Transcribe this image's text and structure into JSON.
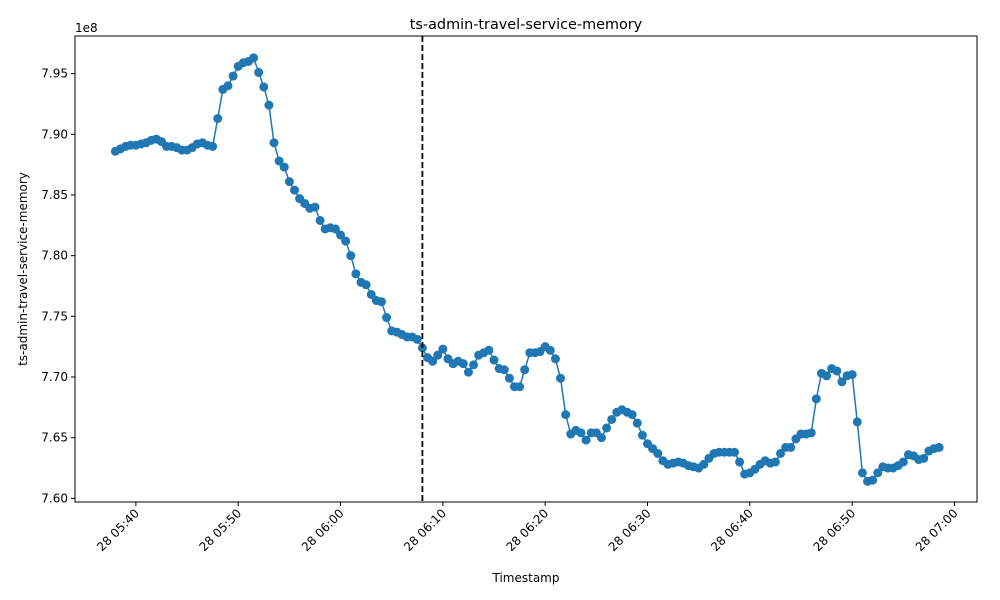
{
  "chart_data": {
    "type": "line",
    "title": "ts-admin-travel-service-memory",
    "x_label": "Timestamp",
    "y_label": "ts-admin-travel-service-memory",
    "y_offset_label": "1e8",
    "x": [
      "28 05:38:00",
      "28 05:38:30",
      "28 05:39:00",
      "28 05:39:30",
      "28 05:40:00",
      "28 05:40:30",
      "28 05:41:00",
      "28 05:41:30",
      "28 05:42:00",
      "28 05:42:30",
      "28 05:43:00",
      "28 05:43:30",
      "28 05:44:00",
      "28 05:44:30",
      "28 05:45:00",
      "28 05:45:30",
      "28 05:46:00",
      "28 05:46:30",
      "28 05:47:00",
      "28 05:47:30",
      "28 05:48:00",
      "28 05:48:30",
      "28 05:49:00",
      "28 05:49:30",
      "28 05:50:00",
      "28 05:50:30",
      "28 05:51:00",
      "28 05:51:30",
      "28 05:52:00",
      "28 05:52:30",
      "28 05:53:00",
      "28 05:53:30",
      "28 05:54:00",
      "28 05:54:30",
      "28 05:55:00",
      "28 05:55:30",
      "28 05:56:00",
      "28 05:56:30",
      "28 05:57:00",
      "28 05:57:30",
      "28 05:58:00",
      "28 05:58:30",
      "28 05:59:00",
      "28 05:59:30",
      "28 06:00:00",
      "28 06:00:30",
      "28 06:01:00",
      "28 06:01:30",
      "28 06:02:00",
      "28 06:02:30",
      "28 06:03:00",
      "28 06:03:30",
      "28 06:04:00",
      "28 06:04:30",
      "28 06:05:00",
      "28 06:05:30",
      "28 06:06:00",
      "28 06:06:30",
      "28 06:07:00",
      "28 06:07:30",
      "28 06:08:00",
      "28 06:08:30",
      "28 06:09:00",
      "28 06:09:30",
      "28 06:10:00",
      "28 06:10:30",
      "28 06:11:00",
      "28 06:11:30",
      "28 06:12:00",
      "28 06:12:30",
      "28 06:13:00",
      "28 06:13:30",
      "28 06:14:00",
      "28 06:14:30",
      "28 06:15:00",
      "28 06:15:30",
      "28 06:16:00",
      "28 06:16:30",
      "28 06:17:00",
      "28 06:17:30",
      "28 06:18:00",
      "28 06:18:30",
      "28 06:19:00",
      "28 06:19:30",
      "28 06:20:00",
      "28 06:20:30",
      "28 06:21:00",
      "28 06:21:30",
      "28 06:22:00",
      "28 06:22:30",
      "28 06:23:00",
      "28 06:23:30",
      "28 06:24:00",
      "28 06:24:30",
      "28 06:25:00",
      "28 06:25:30",
      "28 06:26:00",
      "28 06:26:30",
      "28 06:27:00",
      "28 06:27:30",
      "28 06:28:00",
      "28 06:28:30",
      "28 06:29:00",
      "28 06:29:30",
      "28 06:30:00",
      "28 06:30:30",
      "28 06:31:00",
      "28 06:31:30",
      "28 06:32:00",
      "28 06:32:30",
      "28 06:33:00",
      "28 06:33:30",
      "28 06:34:00",
      "28 06:34:30",
      "28 06:35:00",
      "28 06:35:30",
      "28 06:36:00",
      "28 06:36:30",
      "28 06:37:00",
      "28 06:37:30",
      "28 06:38:00",
      "28 06:38:30",
      "28 06:39:00",
      "28 06:39:30",
      "28 06:40:00",
      "28 06:40:30",
      "28 06:41:00",
      "28 06:41:30",
      "28 06:42:00",
      "28 06:42:30",
      "28 06:43:00",
      "28 06:43:30",
      "28 06:44:00",
      "28 06:44:30",
      "28 06:45:00",
      "28 06:45:30",
      "28 06:46:00",
      "28 06:46:30",
      "28 06:47:00",
      "28 06:47:30",
      "28 06:48:00",
      "28 06:48:30",
      "28 06:49:00",
      "28 06:49:30",
      "28 06:50:00",
      "28 06:50:30",
      "28 06:51:00",
      "28 06:51:30",
      "28 06:52:00",
      "28 06:52:30",
      "28 06:53:00",
      "28 06:53:30",
      "28 06:54:00",
      "28 06:54:30",
      "28 06:55:00",
      "28 06:55:30",
      "28 06:56:00",
      "28 06:56:30",
      "28 06:57:00",
      "28 06:57:30",
      "28 06:58:00",
      "28 06:58:30"
    ],
    "values": [
      7.886,
      7.888,
      7.89,
      7.891,
      7.891,
      7.892,
      7.893,
      7.895,
      7.896,
      7.894,
      7.89,
      7.89,
      7.889,
      7.887,
      7.887,
      7.889,
      7.892,
      7.893,
      7.891,
      7.89,
      7.913,
      7.937,
      7.94,
      7.948,
      7.956,
      7.959,
      7.96,
      7.963,
      7.951,
      7.939,
      7.924,
      7.893,
      7.878,
      7.873,
      7.861,
      7.854,
      7.847,
      7.843,
      7.839,
      7.84,
      7.829,
      7.822,
      7.823,
      7.822,
      7.817,
      7.812,
      7.8,
      7.785,
      7.778,
      7.776,
      7.768,
      7.763,
      7.762,
      7.749,
      7.738,
      7.737,
      7.735,
      7.733,
      7.733,
      7.731,
      7.724,
      7.716,
      7.713,
      7.718,
      7.723,
      7.715,
      7.711,
      7.713,
      7.711,
      7.704,
      7.71,
      7.718,
      7.72,
      7.722,
      7.714,
      7.707,
      7.706,
      7.699,
      7.692,
      7.692,
      7.706,
      7.72,
      7.72,
      7.721,
      7.725,
      7.722,
      7.715,
      7.699,
      7.669,
      7.653,
      7.656,
      7.654,
      7.648,
      7.654,
      7.654,
      7.65,
      7.658,
      7.665,
      7.671,
      7.673,
      7.671,
      7.669,
      7.662,
      7.652,
      7.645,
      7.641,
      7.637,
      7.631,
      7.628,
      7.629,
      7.63,
      7.629,
      7.627,
      7.626,
      7.625,
      7.628,
      7.633,
      7.637,
      7.638,
      7.638,
      7.638,
      7.638,
      7.63,
      7.62,
      7.621,
      7.624,
      7.628,
      7.631,
      7.629,
      7.63,
      7.637,
      7.642,
      7.642,
      7.649,
      7.653,
      7.653,
      7.654,
      7.682,
      7.703,
      7.701,
      7.707,
      7.705,
      7.696,
      7.701,
      7.702,
      7.663,
      7.621,
      7.614,
      7.615,
      7.621,
      7.626,
      7.625,
      7.625,
      7.627,
      7.63,
      7.636,
      7.635,
      7.632,
      7.633,
      7.639,
      7.641,
      7.642
    ],
    "color": "#1f77b4",
    "xlim": [
      "28 05:34:03",
      "28 07:02:12"
    ],
    "xticks": [
      "28 05:40",
      "28 05:50",
      "28 06:00",
      "28 06:10",
      "28 06:20",
      "28 06:30",
      "28 06:40",
      "28 06:50",
      "28 07:00"
    ],
    "ylim": [
      7.597,
      7.981
    ],
    "yticks": [
      {
        "value": 7.6,
        "label": "7.60"
      },
      {
        "value": 7.65,
        "label": "7.65"
      },
      {
        "value": 7.7,
        "label": "7.70"
      },
      {
        "value": 7.75,
        "label": "7.75"
      },
      {
        "value": 7.8,
        "label": "7.80"
      },
      {
        "value": 7.85,
        "label": "7.85"
      },
      {
        "value": 7.9,
        "label": "7.90"
      },
      {
        "value": 7.95,
        "label": "7.95"
      }
    ],
    "vline_x": "28 06:08",
    "vline_color": "#000000",
    "grid": false
  }
}
